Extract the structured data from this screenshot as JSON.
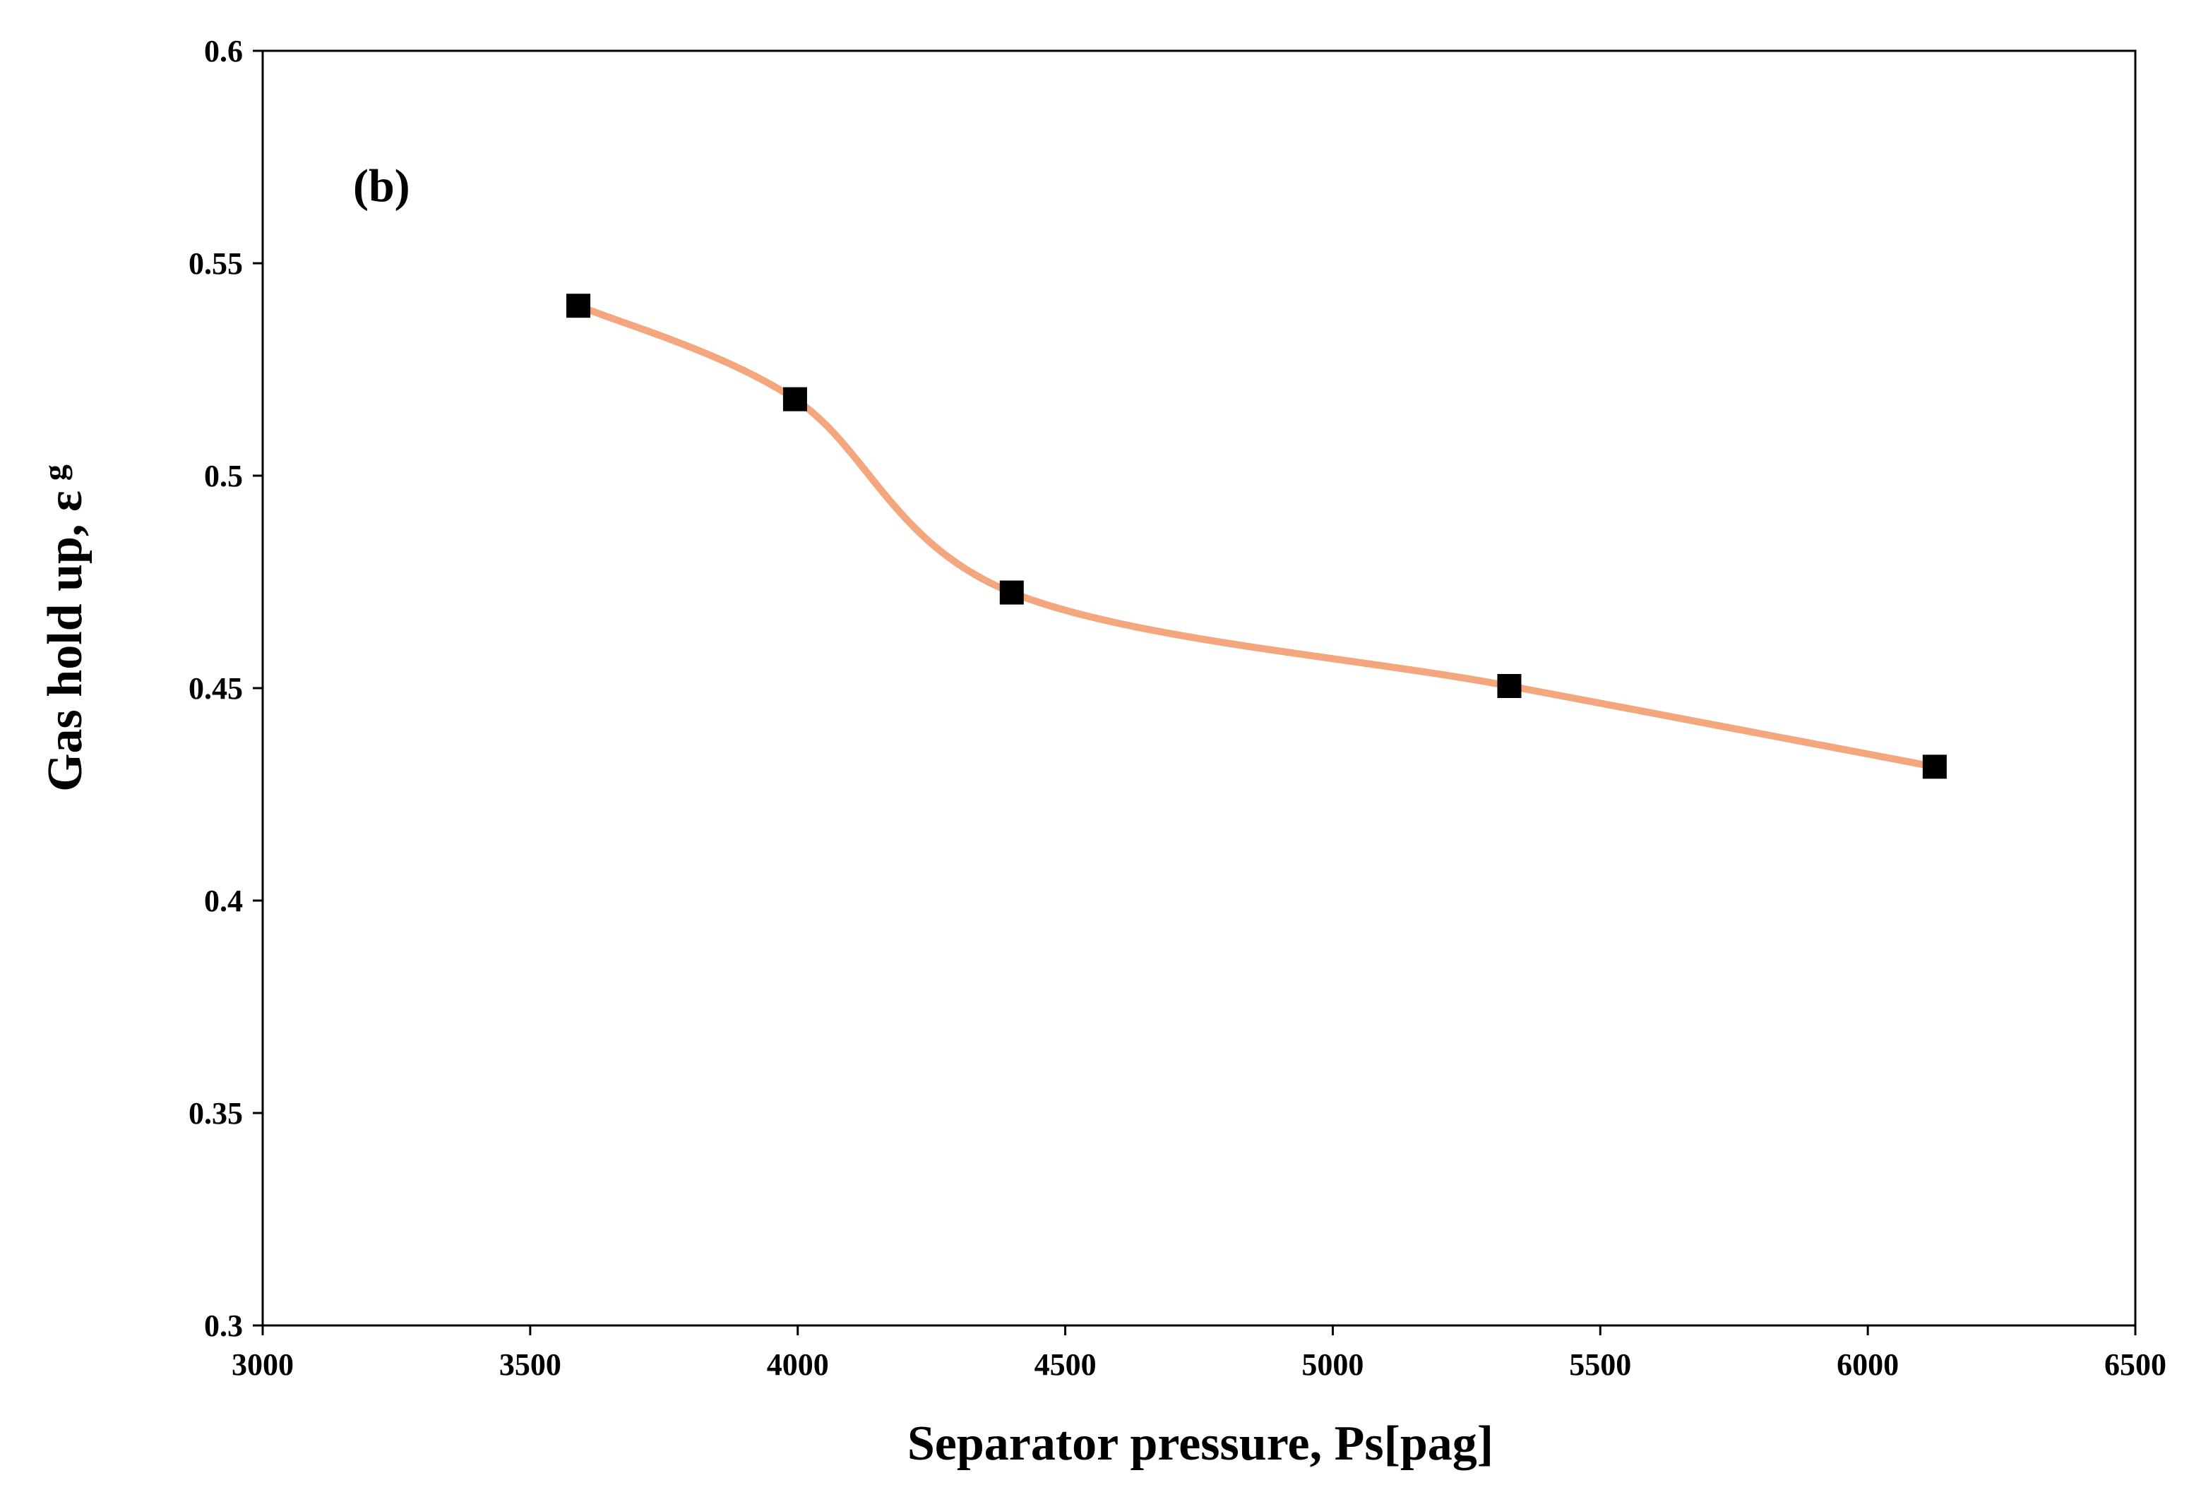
{
  "chart_data": {
    "type": "line",
    "title": "",
    "annotation": "(b)",
    "xlabel": "Separator pressure, Ps[pag]",
    "ylabel": "Gas hold up, ε g",
    "ylabel_main": "Gas hold up, ",
    "ylabel_symbol": "ε",
    "ylabel_sub": "g",
    "xlim": [
      3000,
      6500
    ],
    "ylim": [
      0.3,
      0.6
    ],
    "x_ticks": [
      3000,
      3500,
      4000,
      4500,
      5000,
      5500,
      6000,
      6500
    ],
    "x_tick_labels": [
      "3000",
      "3500",
      "4000",
      "4500",
      "5000",
      "5500",
      "6000",
      "6500"
    ],
    "y_ticks": [
      0.3,
      0.35,
      0.4,
      0.45,
      0.5,
      0.55,
      0.6
    ],
    "y_tick_labels": [
      "0.3",
      "0.35",
      "0.4",
      "0.45",
      "0.5",
      "0.55",
      "0.6"
    ],
    "grid": false,
    "series": [
      {
        "name": "Gas hold up",
        "x": [
          3590,
          3995,
          4400,
          5330,
          6125
        ],
        "y": [
          0.54,
          0.518,
          0.4725,
          0.4505,
          0.4315
        ],
        "line_color": "#F4A67E",
        "marker_color": "#000000",
        "marker": "square",
        "smooth": true
      }
    ]
  }
}
